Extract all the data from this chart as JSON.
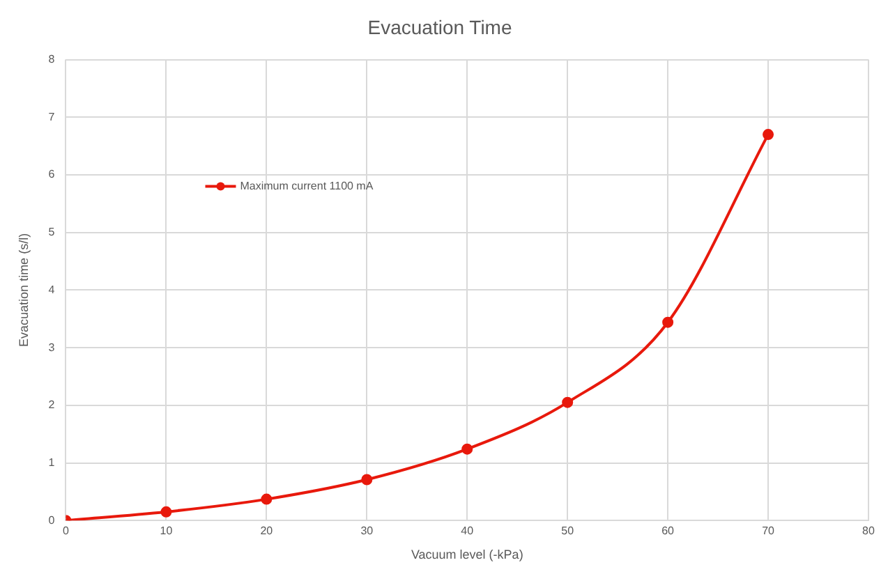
{
  "chart_data": {
    "type": "line",
    "title": "Evacuation Time",
    "xlabel": "Vacuum level (-kPa)",
    "ylabel": "Evacuation time (s/l)",
    "x": [
      0,
      10,
      20,
      30,
      40,
      50,
      60,
      70
    ],
    "series": [
      {
        "name": "Maximum current 1100 mA",
        "color": "#e8190c",
        "values": [
          0,
          0.15,
          0.37,
          0.71,
          1.24,
          2.05,
          3.44,
          6.7
        ]
      }
    ],
    "xlim": [
      0,
      80
    ],
    "xticks": [
      0,
      10,
      20,
      30,
      40,
      50,
      60,
      70,
      80
    ],
    "ylim": [
      0,
      8
    ],
    "yticks": [
      0,
      1,
      2,
      3,
      4,
      5,
      6,
      7,
      8
    ],
    "grid": true,
    "legend": "top left",
    "marker": "circle",
    "line_style": "solid"
  }
}
